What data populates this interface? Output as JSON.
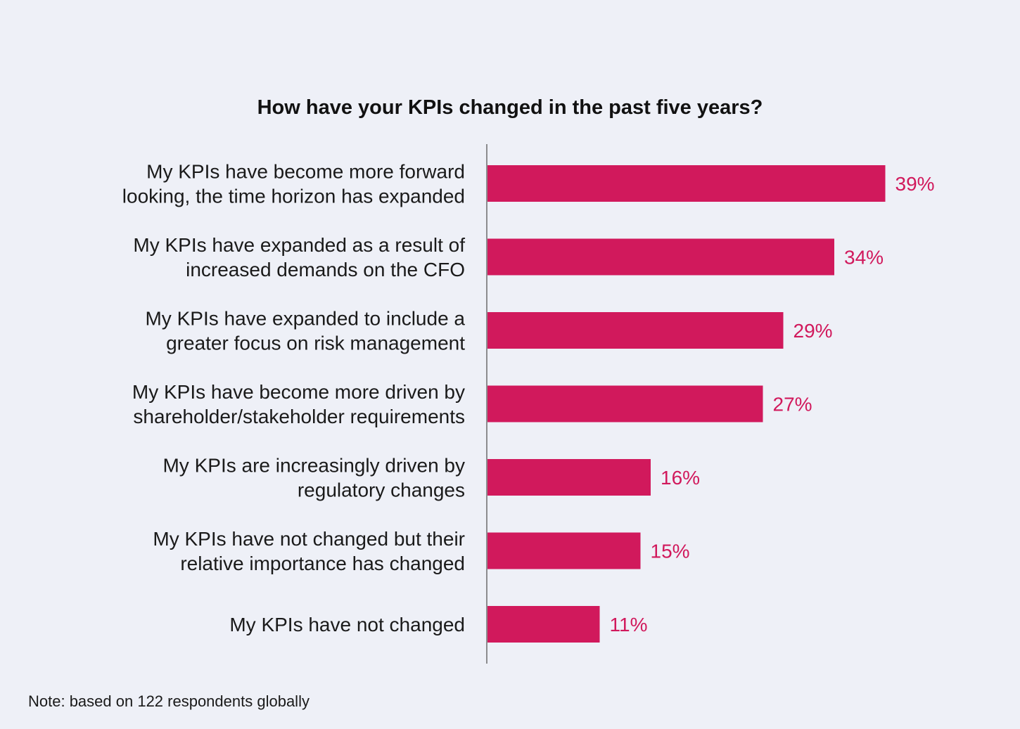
{
  "chart_data": {
    "type": "bar",
    "orientation": "horizontal",
    "title": "How have your KPIs changed in the past five years?",
    "categories": [
      [
        "My KPIs have become more forward",
        "looking, the time horizon has expanded"
      ],
      [
        "My KPIs have expanded as a result of",
        "increased demands on the CFO"
      ],
      [
        "My KPIs have expanded to include a",
        "greater focus on risk management"
      ],
      [
        "My KPIs have become more driven by",
        "shareholder/stakeholder requirements"
      ],
      [
        "My KPIs are increasingly driven by",
        "regulatory changes"
      ],
      [
        "My KPIs have not changed but their",
        "relative importance has changed"
      ],
      [
        "My KPIs have not changed"
      ]
    ],
    "values": [
      39,
      34,
      29,
      27,
      16,
      15,
      11
    ],
    "value_labels": [
      "39%",
      "34%",
      "29%",
      "27%",
      "16%",
      "15%",
      "11%"
    ],
    "unit": "%",
    "xlim": [
      0,
      40
    ],
    "xlabel": "",
    "ylabel": "",
    "grid": false,
    "legend": "none"
  },
  "note": "Note: based on 122 respondents globally",
  "colors": {
    "bar": "#d1195c",
    "value_text": "#d1195c",
    "axis": "#6b6b6b",
    "background": "#eef0f7"
  }
}
